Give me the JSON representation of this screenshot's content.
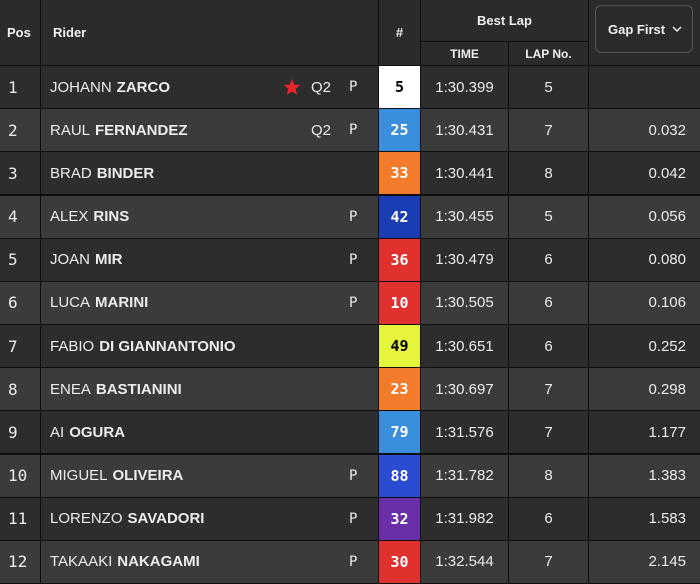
{
  "header": {
    "pos": "Pos",
    "rider": "Rider",
    "number": "#",
    "best_lap": "Best Lap",
    "time": "TIME",
    "lap": "LAP No.",
    "gap": "Gap First"
  },
  "rows": [
    {
      "pos": "1",
      "first": "JOHANN",
      "last": "ZARCO",
      "star": true,
      "q2": "Q2",
      "p": "P",
      "number": "5",
      "color": "#ffffff",
      "text_color": "#000000",
      "time": "1:30.399",
      "lap": "5",
      "gap": null
    },
    {
      "pos": "2",
      "first": "RAUL",
      "last": "FERNANDEZ",
      "q2": "Q2",
      "p": "P",
      "number": "25",
      "color": "#3a8fdc",
      "text_color": "#ffffff",
      "time": "1:30.431",
      "lap": "7",
      "gap": "0.032"
    },
    {
      "pos": "3",
      "first": "BRAD",
      "last": "BINDER",
      "number": "33",
      "color": "#f27b2c",
      "text_color": "#ffffff",
      "time": "1:30.441",
      "lap": "8",
      "gap": "0.042"
    },
    {
      "pos": "4",
      "first": "ALEX",
      "last": "RINS",
      "p": "P",
      "number": "42",
      "color": "#1b3db3",
      "text_color": "#ffffff",
      "time": "1:30.455",
      "lap": "5",
      "gap": "0.056"
    },
    {
      "pos": "5",
      "first": "JOAN",
      "last": "MIR",
      "p": "P",
      "number": "36",
      "color": "#e0312f",
      "text_color": "#ffffff",
      "time": "1:30.479",
      "lap": "6",
      "gap": "0.080"
    },
    {
      "pos": "6",
      "first": "LUCA",
      "last": "MARINI",
      "p": "P",
      "number": "10",
      "color": "#e0312f",
      "text_color": "#ffffff",
      "time": "1:30.505",
      "lap": "6",
      "gap": "0.106"
    },
    {
      "pos": "7",
      "first": "FABIO",
      "last": "DI GIANNANTONIO",
      "number": "49",
      "color": "#e6f43c",
      "text_color": "#000000",
      "time": "1:30.651",
      "lap": "6",
      "gap": "0.252"
    },
    {
      "pos": "8",
      "first": "ENEA",
      "last": "BASTIANINI",
      "number": "23",
      "color": "#f27b2c",
      "text_color": "#ffffff",
      "time": "1:30.697",
      "lap": "7",
      "gap": "0.298"
    },
    {
      "pos": "9",
      "first": "AI",
      "last": "OGURA",
      "number": "79",
      "color": "#3a8fdc",
      "text_color": "#ffffff",
      "time": "1:31.576",
      "lap": "7",
      "gap": "1.177"
    },
    {
      "pos": "10",
      "first": "MIGUEL",
      "last": "OLIVEIRA",
      "p": "P",
      "number": "88",
      "color": "#2c4bd3",
      "text_color": "#ffffff",
      "time": "1:31.782",
      "lap": "8",
      "gap": "1.383"
    },
    {
      "pos": "11",
      "first": "LORENZO",
      "last": "SAVADORI",
      "p": "P",
      "number": "32",
      "color": "#6a2ea9",
      "text_color": "#ffffff",
      "time": "1:31.982",
      "lap": "6",
      "gap": "1.583"
    },
    {
      "pos": "12",
      "first": "TAKAAKI",
      "last": "NAKAGAMI",
      "p": "P",
      "number": "30",
      "color": "#e0312f",
      "text_color": "#ffffff",
      "time": "1:32.544",
      "lap": "7",
      "gap": "2.145"
    }
  ]
}
